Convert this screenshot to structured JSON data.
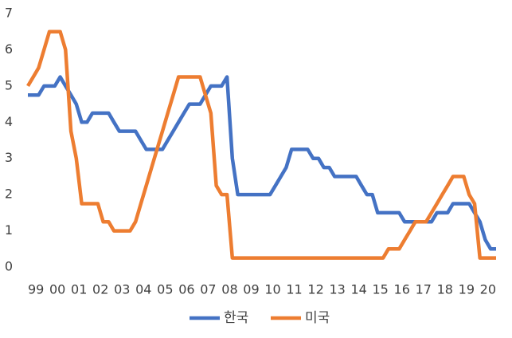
{
  "chart_data": {
    "type": "line",
    "categories": [
      "99",
      null,
      null,
      null,
      "00",
      null,
      null,
      null,
      "01",
      null,
      null,
      null,
      "02",
      null,
      null,
      null,
      "03",
      null,
      null,
      null,
      "04",
      null,
      null,
      null,
      "05",
      null,
      null,
      null,
      "06",
      null,
      null,
      null,
      "07",
      null,
      null,
      null,
      "08",
      null,
      null,
      null,
      "09",
      null,
      null,
      null,
      "10",
      null,
      null,
      null,
      "11",
      null,
      null,
      null,
      "12",
      null,
      null,
      null,
      "13",
      null,
      null,
      null,
      "14",
      null,
      null,
      null,
      "15",
      null,
      null,
      null,
      "16",
      null,
      null,
      null,
      "17",
      null,
      null,
      null,
      "18",
      null,
      null,
      null,
      "19",
      null,
      null,
      null,
      "20",
      null,
      null,
      null
    ],
    "series": [
      {
        "name": "한국",
        "color": "#4472c4",
        "values": [
          4.75,
          4.75,
          4.75,
          5,
          5,
          5,
          5.25,
          5,
          4.75,
          4.5,
          4,
          4,
          4.25,
          4.25,
          4.25,
          4.25,
          4,
          3.75,
          3.75,
          3.75,
          3.75,
          3.5,
          3.25,
          3.25,
          3.25,
          3.25,
          3.5,
          3.75,
          4,
          4.25,
          4.5,
          4.5,
          4.5,
          4.75,
          5,
          5,
          5,
          5.25,
          3,
          2,
          2,
          2,
          2,
          2,
          2,
          2,
          2.25,
          2.5,
          2.75,
          3.25,
          3.25,
          3.25,
          3.25,
          3,
          3,
          2.75,
          2.75,
          2.5,
          2.5,
          2.5,
          2.5,
          2.5,
          2.25,
          2,
          2,
          1.5,
          1.5,
          1.5,
          1.5,
          1.5,
          1.25,
          1.25,
          1.25,
          1.25,
          1.25,
          1.25,
          1.5,
          1.5,
          1.5,
          1.75,
          1.75,
          1.75,
          1.75,
          1.5,
          1.25,
          0.75,
          0.5,
          0.5
        ]
      },
      {
        "name": "미국",
        "color": "#ed7d31",
        "values": [
          5,
          5.25,
          5.5,
          6,
          6.5,
          6.5,
          6.5,
          6,
          3.75,
          3,
          1.75,
          1.75,
          1.75,
          1.75,
          1.25,
          1.25,
          1,
          1,
          1,
          1,
          1.25,
          1.75,
          2.25,
          2.75,
          3.25,
          3.75,
          4.25,
          4.75,
          5.25,
          5.25,
          5.25,
          5.25,
          5.25,
          4.75,
          4.25,
          2.25,
          2,
          2,
          0.25,
          0.25,
          0.25,
          0.25,
          0.25,
          0.25,
          0.25,
          0.25,
          0.25,
          0.25,
          0.25,
          0.25,
          0.25,
          0.25,
          0.25,
          0.25,
          0.25,
          0.25,
          0.25,
          0.25,
          0.25,
          0.25,
          0.25,
          0.25,
          0.25,
          0.25,
          0.25,
          0.25,
          0.25,
          0.5,
          0.5,
          0.5,
          0.75,
          1,
          1.25,
          1.25,
          1.25,
          1.5,
          1.75,
          2,
          2.25,
          2.5,
          2.5,
          2.5,
          2,
          1.75,
          0.25,
          0.25,
          0.25,
          0.25
        ]
      }
    ],
    "ylim": [
      0,
      7
    ],
    "yticks": [
      0,
      1,
      2,
      3,
      4,
      5,
      6,
      7
    ],
    "grid": false,
    "legend": "bottom"
  }
}
